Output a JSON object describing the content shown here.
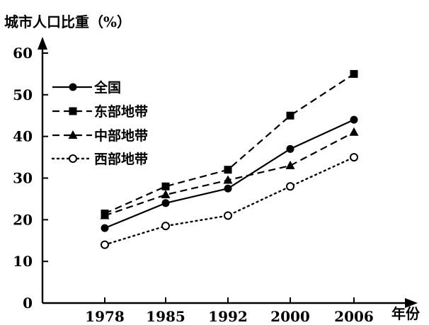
{
  "chart_data": {
    "type": "line",
    "ylabel": "城市人口比重（%）",
    "xlabel": "年份",
    "categories": [
      "1978",
      "1985",
      "1992",
      "2000",
      "2006"
    ],
    "ylim": [
      0,
      60
    ],
    "yticks": [
      0,
      10,
      20,
      30,
      40,
      50,
      60
    ],
    "grid": false,
    "legend_position": "top-left",
    "series": [
      {
        "name": "全国",
        "values": [
          18,
          24,
          27.5,
          37,
          44
        ],
        "style": "solid",
        "marker": "filled-circle",
        "color": "#000000"
      },
      {
        "name": "东部地带",
        "values": [
          21.5,
          28,
          32,
          45,
          55
        ],
        "style": "dashed",
        "marker": "filled-square",
        "color": "#000000"
      },
      {
        "name": "中部地带",
        "values": [
          21,
          26,
          29.5,
          33,
          41
        ],
        "style": "dashed",
        "marker": "filled-triangle",
        "color": "#000000"
      },
      {
        "name": "西部地带",
        "values": [
          14,
          18.5,
          21,
          28,
          35
        ],
        "style": "dotted",
        "marker": "open-circle",
        "color": "#000000"
      }
    ]
  }
}
